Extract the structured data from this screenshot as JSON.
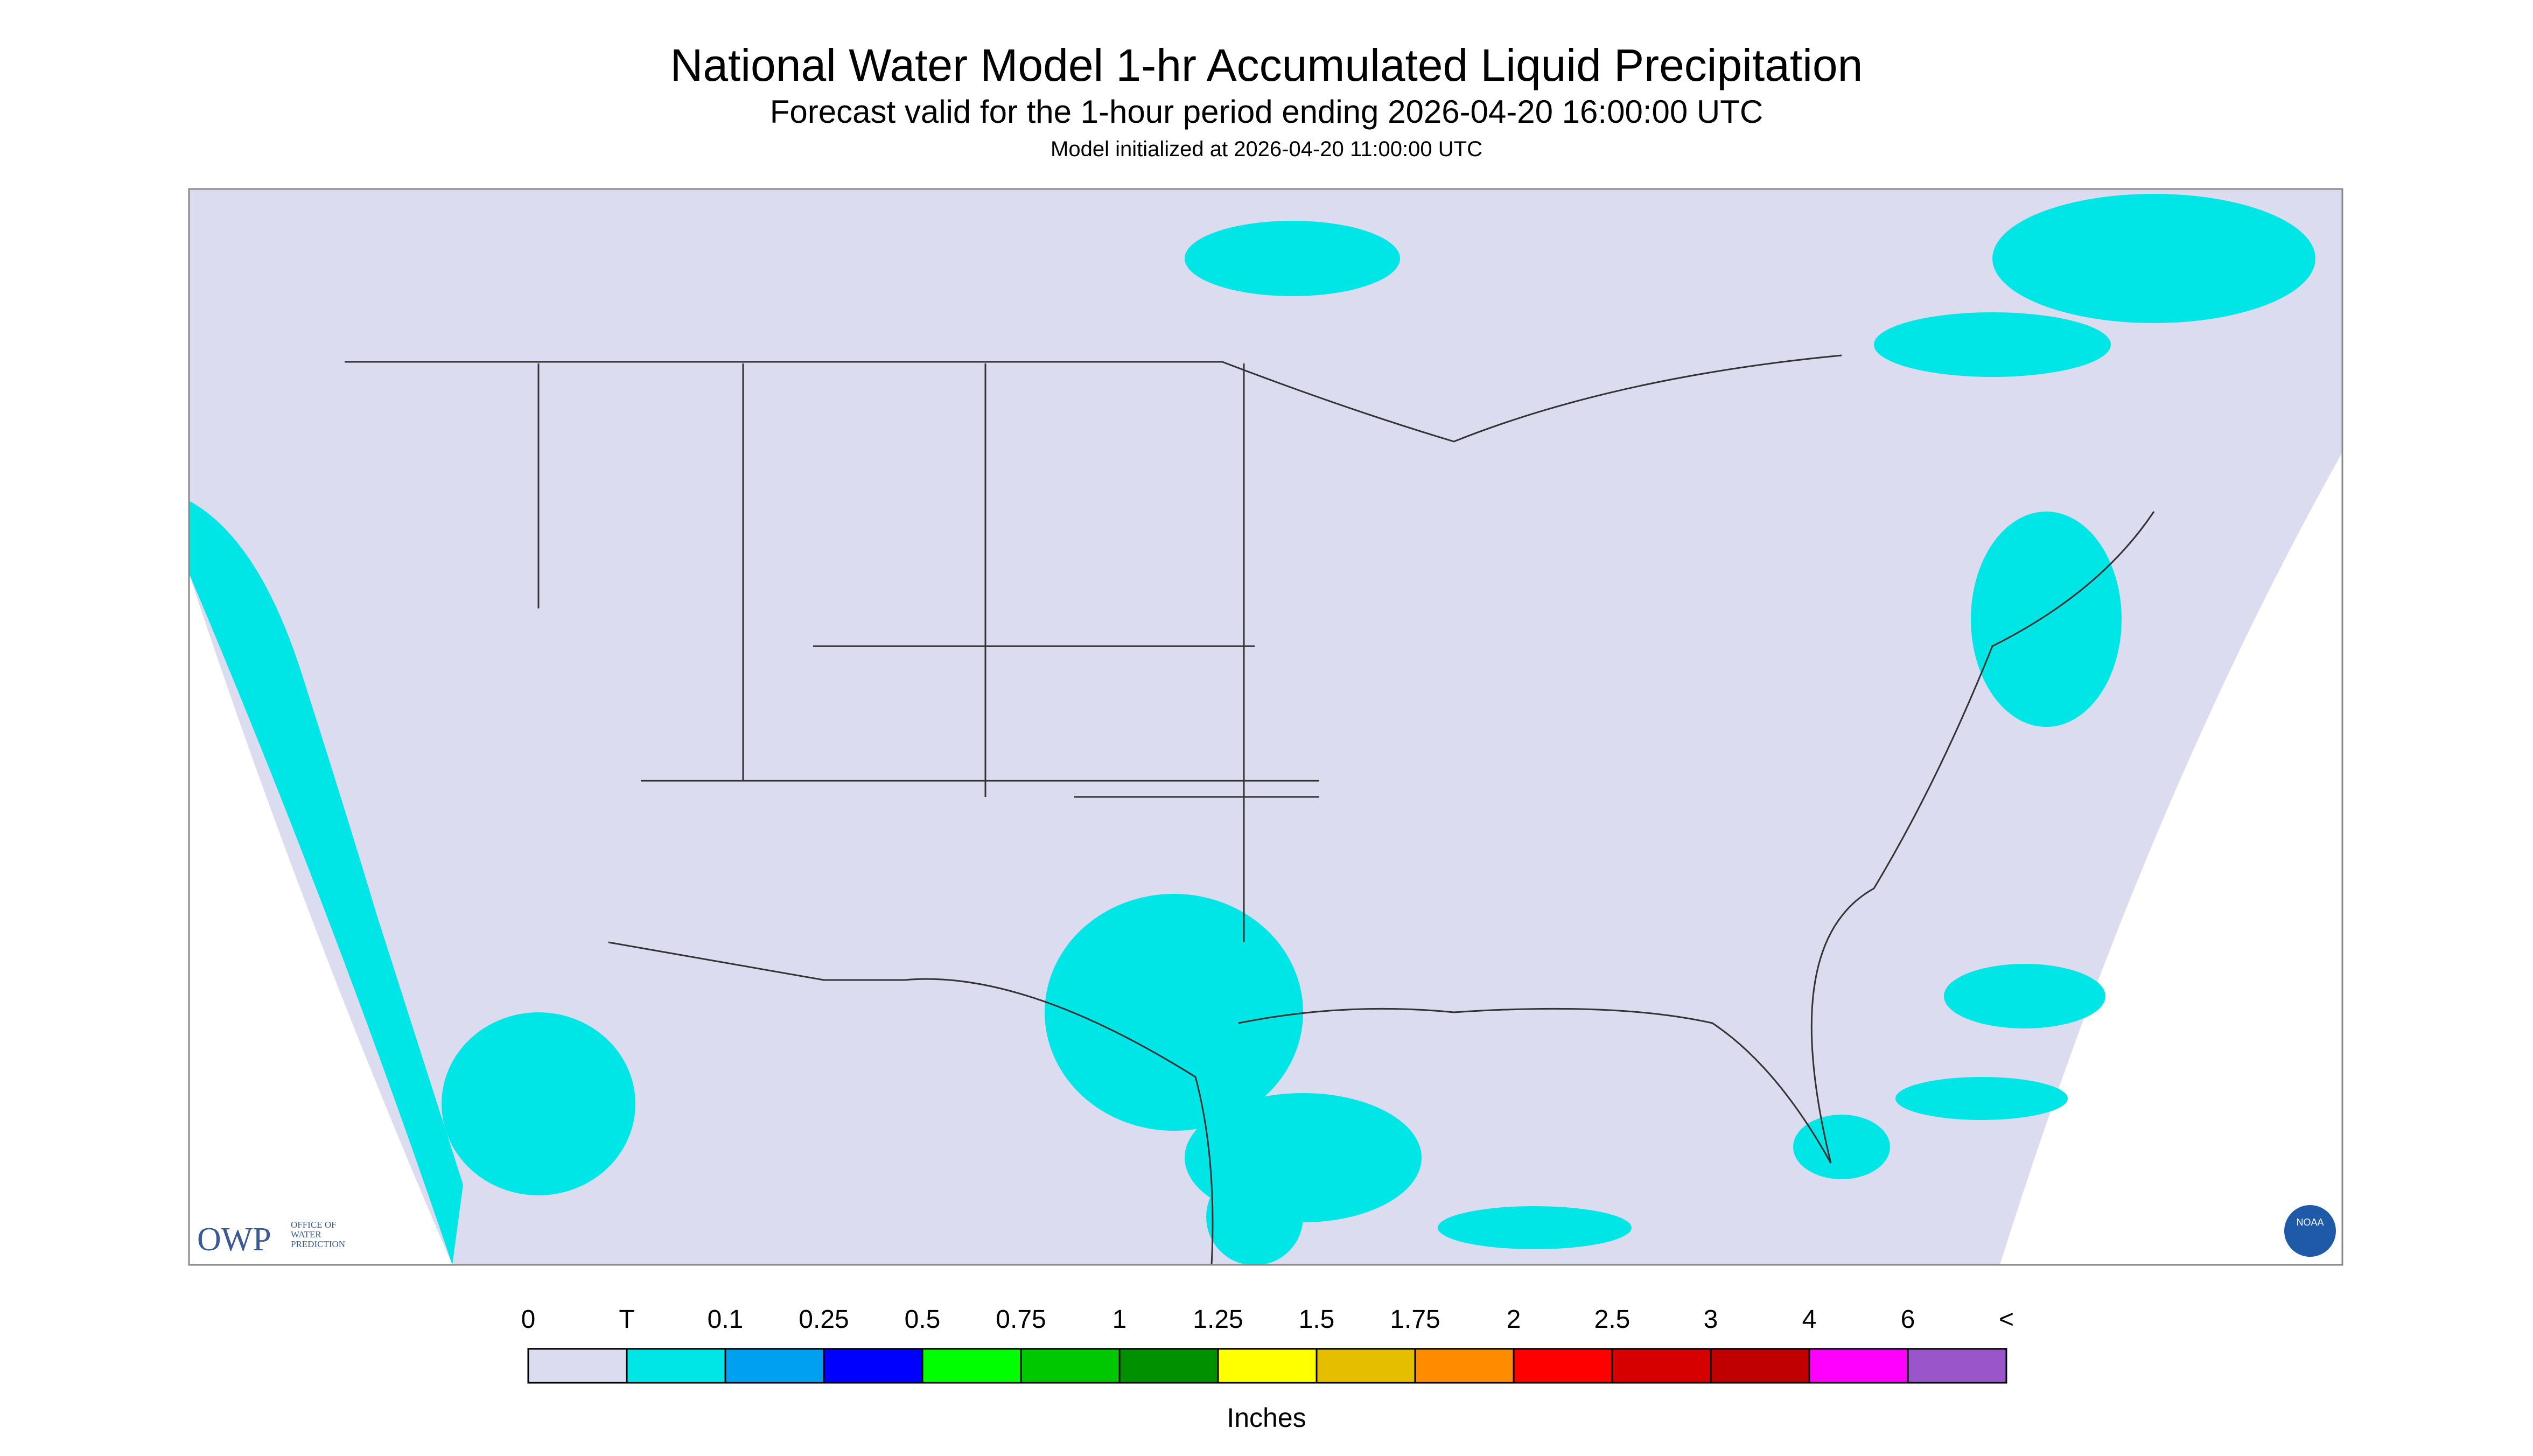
{
  "header": {
    "title": "National Water Model 1-hr Accumulated Liquid Precipitation",
    "subtitle": "Forecast valid for the 1-hour period ending 2026-04-20 16:00:00 UTC",
    "init": "Model initialized at 2026-04-20 11:00:00 UTC"
  },
  "logo": {
    "abbr": "OWP",
    "lines": [
      "OFFICE OF",
      "WATER",
      "PREDICTION"
    ],
    "noaa": "NOAA"
  },
  "legend": {
    "labels": [
      "0",
      "T",
      "0.1",
      "0.25",
      "0.5",
      "0.75",
      "1",
      "1.25",
      "1.5",
      "1.75",
      "2",
      "2.5",
      "3",
      "4",
      "6",
      "<"
    ],
    "colors": [
      "#dcdcf0",
      "#00e6e6",
      "#00a0f0",
      "#0000ff",
      "#00ff00",
      "#00c800",
      "#009000",
      "#ffff00",
      "#e6be00",
      "#ff8c00",
      "#ff0000",
      "#d70000",
      "#c00000",
      "#ff00ff",
      "#9955c9"
    ],
    "unit": "Inches"
  }
}
